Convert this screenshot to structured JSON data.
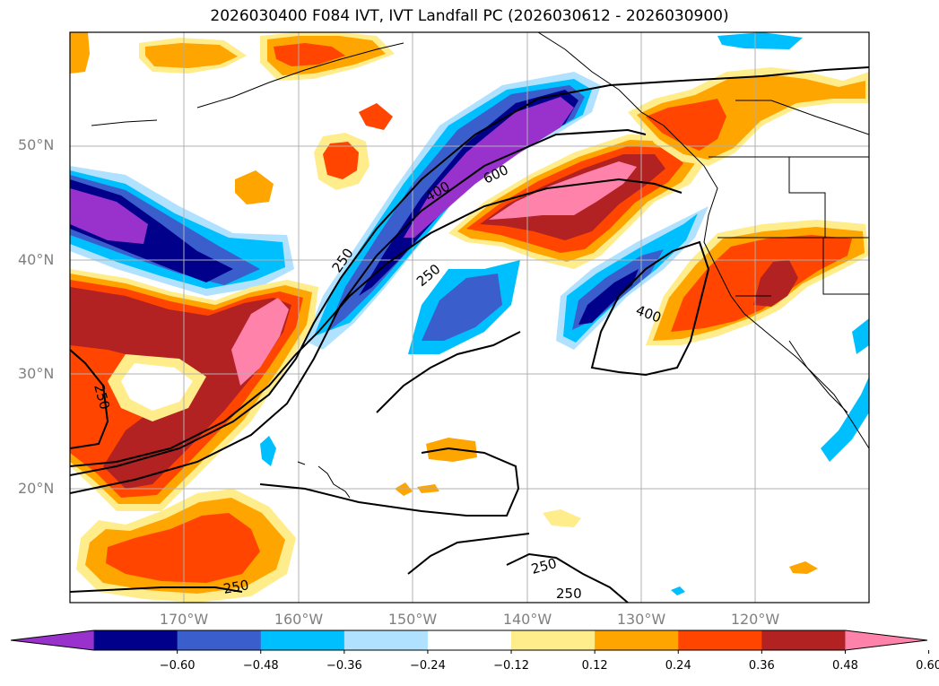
{
  "title": "2026030400 F084 IVT, IVT Landfall PC (2026030612 - 2026030900)",
  "lat_labels": [
    "50°N",
    "40°N",
    "30°N",
    "20°N"
  ],
  "lon_labels": [
    "170°W",
    "160°W",
    "150°W",
    "140°W",
    "130°W",
    "120°W"
  ],
  "colorbar": {
    "ticks": [
      "−0.60",
      "−0.48",
      "−0.36",
      "−0.24",
      "−0.12",
      "0.12",
      "0.24",
      "0.36",
      "0.48",
      "0.60"
    ],
    "colors": [
      "#9932CC",
      "#00008B",
      "#3A5FCD",
      "#00BFFF",
      "#B0E2FF",
      "#FFFFFF",
      "#FFEC8B",
      "#FFA500",
      "#FF4500",
      "#B22222",
      "#FF82AB"
    ]
  },
  "contour_labels": [
    "250",
    "250",
    "250",
    "250",
    "250",
    "400",
    "400",
    "600",
    "250"
  ],
  "colors": {
    "grid": "#b0b0b0",
    "coast": "#000000",
    "label_gray": "#808080"
  }
}
